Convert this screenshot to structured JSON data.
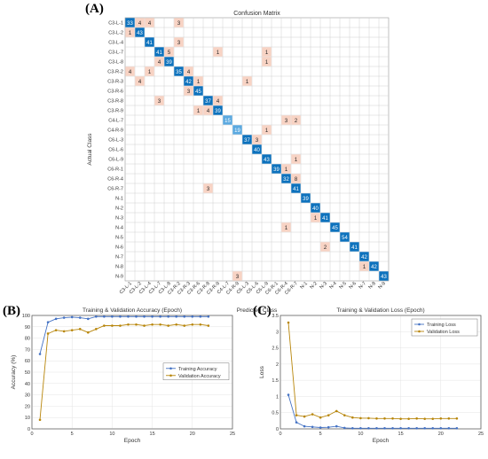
{
  "panels": {
    "a": "(A)",
    "b": "(B)",
    "c": "(C)"
  },
  "chart_data": [
    {
      "type": "heatmap",
      "title": "Confusion Matrix",
      "xlabel": "Predicted Class",
      "ylabel": "Actual Class",
      "classes": [
        "C3-L-1",
        "C3-L-2",
        "C3-L-4",
        "C3-L-7",
        "C3-L-8",
        "C3-R-2",
        "C3-R-3",
        "C3-R-6",
        "C3-R-8",
        "C3-R-9",
        "C4-L-7",
        "C4-R-9",
        "C6-L-3",
        "C6-L-6",
        "C6-L-9",
        "C6-R-1",
        "C6-R-4",
        "C6-R-7",
        "N-1",
        "N-2",
        "N-3",
        "N-4",
        "N-5",
        "N-6",
        "N-7",
        "N-8",
        "N-9"
      ],
      "cells": [
        {
          "r": 0,
          "c": 0,
          "v": 33
        },
        {
          "r": 0,
          "c": 1,
          "v": 4
        },
        {
          "r": 0,
          "c": 2,
          "v": 4
        },
        {
          "r": 0,
          "c": 5,
          "v": 3
        },
        {
          "r": 1,
          "c": 0,
          "v": 1
        },
        {
          "r": 1,
          "c": 1,
          "v": 43
        },
        {
          "r": 2,
          "c": 2,
          "v": 41
        },
        {
          "r": 2,
          "c": 5,
          "v": 3
        },
        {
          "r": 3,
          "c": 3,
          "v": 41
        },
        {
          "r": 3,
          "c": 4,
          "v": 5
        },
        {
          "r": 3,
          "c": 9,
          "v": 1
        },
        {
          "r": 3,
          "c": 14,
          "v": 1
        },
        {
          "r": 4,
          "c": 3,
          "v": 4
        },
        {
          "r": 4,
          "c": 4,
          "v": 39
        },
        {
          "r": 4,
          "c": 14,
          "v": 1
        },
        {
          "r": 5,
          "c": 0,
          "v": 4
        },
        {
          "r": 5,
          "c": 2,
          "v": 1
        },
        {
          "r": 5,
          "c": 5,
          "v": 35
        },
        {
          "r": 5,
          "c": 6,
          "v": 4
        },
        {
          "r": 6,
          "c": 1,
          "v": 4
        },
        {
          "r": 6,
          "c": 6,
          "v": 42
        },
        {
          "r": 6,
          "c": 7,
          "v": 1
        },
        {
          "r": 6,
          "c": 12,
          "v": 1
        },
        {
          "r": 7,
          "c": 6,
          "v": 3
        },
        {
          "r": 7,
          "c": 7,
          "v": 45
        },
        {
          "r": 8,
          "c": 3,
          "v": 3
        },
        {
          "r": 8,
          "c": 8,
          "v": 37
        },
        {
          "r": 8,
          "c": 9,
          "v": 4
        },
        {
          "r": 9,
          "c": 7,
          "v": 1
        },
        {
          "r": 9,
          "c": 8,
          "v": 4
        },
        {
          "r": 9,
          "c": 9,
          "v": 39
        },
        {
          "r": 10,
          "c": 10,
          "v": 15
        },
        {
          "r": 10,
          "c": 16,
          "v": 3
        },
        {
          "r": 10,
          "c": 17,
          "v": 2
        },
        {
          "r": 11,
          "c": 11,
          "v": 19
        },
        {
          "r": 11,
          "c": 14,
          "v": 1
        },
        {
          "r": 12,
          "c": 12,
          "v": 37
        },
        {
          "r": 12,
          "c": 13,
          "v": 3
        },
        {
          "r": 13,
          "c": 13,
          "v": 40
        },
        {
          "r": 14,
          "c": 14,
          "v": 43
        },
        {
          "r": 14,
          "c": 17,
          "v": 1
        },
        {
          "r": 15,
          "c": 15,
          "v": 39
        },
        {
          "r": 15,
          "c": 16,
          "v": 1
        },
        {
          "r": 16,
          "c": 16,
          "v": 32
        },
        {
          "r": 16,
          "c": 17,
          "v": 8
        },
        {
          "r": 17,
          "c": 8,
          "v": 3
        },
        {
          "r": 17,
          "c": 17,
          "v": 41
        },
        {
          "r": 18,
          "c": 18,
          "v": 39
        },
        {
          "r": 19,
          "c": 19,
          "v": 40
        },
        {
          "r": 20,
          "c": 19,
          "v": 1
        },
        {
          "r": 20,
          "c": 20,
          "v": 41
        },
        {
          "r": 21,
          "c": 16,
          "v": 1
        },
        {
          "r": 21,
          "c": 21,
          "v": 45
        },
        {
          "r": 22,
          "c": 22,
          "v": 54
        },
        {
          "r": 23,
          "c": 20,
          "v": 2
        },
        {
          "r": 23,
          "c": 23,
          "v": 41
        },
        {
          "r": 24,
          "c": 24,
          "v": 42
        },
        {
          "r": 25,
          "c": 24,
          "v": 1
        },
        {
          "r": 25,
          "c": 25,
          "v": 42
        },
        {
          "r": 26,
          "c": 11,
          "v": 3
        },
        {
          "r": 26,
          "c": 26,
          "v": 43
        }
      ],
      "colors": {
        "diagonal_high": "#0d72bd",
        "diagonal_low": "#5ba9e0",
        "offdiag": "#f8d3c4",
        "grid": "#d0d0d0"
      }
    },
    {
      "type": "line",
      "title": "Training & Validation Accuracy (Epoch)",
      "xlabel": "Epoch",
      "ylabel": "Accuracy (%)",
      "xlim": [
        0,
        25
      ],
      "ylim": [
        0,
        100
      ],
      "xticks": [
        0,
        5,
        10,
        15,
        20,
        25
      ],
      "yticks": [
        0,
        10,
        20,
        30,
        40,
        50,
        60,
        70,
        80,
        90,
        100
      ],
      "grid": true,
      "legend": "right",
      "x": [
        1,
        2,
        3,
        4,
        5,
        6,
        7,
        8,
        9,
        10,
        11,
        12,
        13,
        14,
        15,
        16,
        17,
        18,
        19,
        20,
        21,
        22
      ],
      "series": [
        {
          "name": "Training Accuracy",
          "color": "#4472c4",
          "values": [
            66,
            94,
            97,
            98,
            98.5,
            98,
            97,
            99,
            99,
            99,
            99,
            99,
            99,
            99,
            99,
            99,
            99,
            99,
            99,
            99,
            99,
            99
          ]
        },
        {
          "name": "Validation Accuracy",
          "color": "#b8860b",
          "values": [
            8,
            84,
            87,
            86,
            87,
            88,
            85,
            88,
            91,
            91,
            91,
            92,
            92,
            91,
            92,
            92,
            91,
            92,
            91,
            92,
            92,
            91
          ]
        }
      ]
    },
    {
      "type": "line",
      "title": "Training & Validation Loss (Epoch)",
      "xlabel": "Epoch",
      "ylabel": "Loss",
      "xlim": [
        0,
        25
      ],
      "ylim": [
        0,
        3.5
      ],
      "xticks": [
        0,
        5,
        10,
        15,
        20,
        25
      ],
      "yticks": [
        0,
        0.5,
        1,
        1.5,
        2,
        2.5,
        3,
        3.5
      ],
      "grid": true,
      "legend": "top-right",
      "x": [
        1,
        2,
        3,
        4,
        5,
        6,
        7,
        8,
        9,
        10,
        11,
        12,
        13,
        14,
        15,
        16,
        17,
        18,
        19,
        20,
        21,
        22
      ],
      "series": [
        {
          "name": "Training Loss",
          "color": "#4472c4",
          "values": [
            1.05,
            0.2,
            0.08,
            0.06,
            0.04,
            0.05,
            0.08,
            0.03,
            0.02,
            0.02,
            0.02,
            0.02,
            0.02,
            0.02,
            0.02,
            0.02,
            0.02,
            0.02,
            0.02,
            0.02,
            0.02,
            0.02
          ]
        },
        {
          "name": "Validation Loss",
          "color": "#b8860b",
          "values": [
            3.28,
            0.42,
            0.38,
            0.45,
            0.35,
            0.42,
            0.55,
            0.42,
            0.35,
            0.33,
            0.33,
            0.32,
            0.32,
            0.32,
            0.31,
            0.31,
            0.32,
            0.31,
            0.31,
            0.32,
            0.32,
            0.32
          ]
        }
      ]
    }
  ]
}
